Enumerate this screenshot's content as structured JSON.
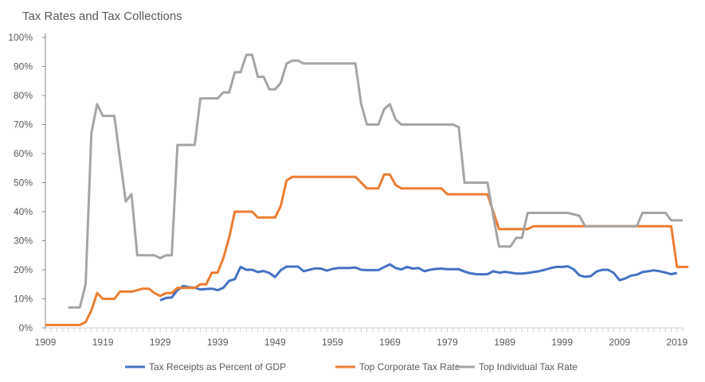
{
  "chart_data": {
    "type": "line",
    "title": "Tax Rates and Tax Collections",
    "xlabel": "",
    "ylabel": "",
    "xlim": [
      1909,
      2020
    ],
    "ylim": [
      0,
      100
    ],
    "x_ticks": [
      "1909",
      "1919",
      "1929",
      "1939",
      "1949",
      "1959",
      "1969",
      "1979",
      "1989",
      "1999",
      "2009",
      "2019"
    ],
    "y_ticks": [
      "0%",
      "10%",
      "20%",
      "30%",
      "40%",
      "50%",
      "60%",
      "70%",
      "80%",
      "90%",
      "100%"
    ],
    "grid": false,
    "legend_position": "bottom",
    "series": [
      {
        "name": "Tax Receipts as Percent of GDP",
        "color": "#4472C4",
        "start_year": 1929,
        "values": [
          9.5,
          10.3,
          10.5,
          13,
          14.4,
          14,
          13.8,
          13.2,
          13.4,
          13.5,
          13,
          13.8,
          16.2,
          16.8,
          21,
          20,
          20,
          19.2,
          19.6,
          18.9,
          17.5,
          19.9,
          21.1,
          21.1,
          21.1,
          19.5,
          20,
          20.5,
          20.4,
          19.7,
          20.3,
          20.6,
          20.6,
          20.6,
          20.8,
          20,
          19.9,
          19.9,
          19.9,
          20.9,
          21.9,
          20.6,
          20.1,
          21,
          20.4,
          20.6,
          19.5,
          20,
          20.3,
          20.4,
          20.2,
          20.2,
          20.2,
          19.4,
          18.8,
          18.5,
          18.4,
          18.5,
          19.5,
          19,
          19.3,
          19,
          18.7,
          18.7,
          18.9,
          19.2,
          19.5,
          20,
          20.6,
          21,
          21,
          21.2,
          20.2,
          18.1,
          17.6,
          17.8,
          19.4,
          20,
          20,
          18.9,
          16.4,
          17,
          18,
          18.3,
          19.2,
          19.5,
          19.8,
          19.5,
          19,
          18.5,
          18.9
        ]
      },
      {
        "name": "Top Corporate Tax Rate",
        "color": "#ED7D31",
        "start_year": 1909,
        "values": [
          1,
          1,
          1,
          1,
          1,
          1,
          1,
          2,
          6,
          12,
          10,
          10,
          10,
          12.5,
          12.5,
          12.5,
          13,
          13.5,
          13.5,
          12,
          11,
          12,
          12,
          13.75,
          13.75,
          13.75,
          13.75,
          15,
          15,
          19,
          19,
          24,
          31,
          40,
          40,
          40,
          40,
          38,
          38,
          38,
          38,
          42,
          50.75,
          52,
          52,
          52,
          52,
          52,
          52,
          52,
          52,
          52,
          52,
          52,
          52,
          50,
          48,
          48,
          48,
          52.8,
          52.8,
          49.2,
          48,
          48,
          48,
          48,
          48,
          48,
          48,
          48,
          46,
          46,
          46,
          46,
          46,
          46,
          46,
          46,
          40,
          34,
          34,
          34,
          34,
          34,
          34,
          35,
          35,
          35,
          35,
          35,
          35,
          35,
          35,
          35,
          35,
          35,
          35,
          35,
          35,
          35,
          35,
          35,
          35,
          35,
          35,
          35,
          35,
          35,
          35,
          35,
          21,
          21,
          21
        ]
      },
      {
        "name": "Top Individual Tax Rate",
        "color": "#A5A5A5",
        "start_year": 1913,
        "values": [
          7,
          7,
          7,
          15,
          67,
          77,
          73,
          73,
          73,
          58,
          43.5,
          46,
          25,
          25,
          25,
          25,
          24,
          25,
          25,
          63,
          63,
          63,
          63,
          79,
          79,
          79,
          79,
          81.1,
          81,
          88,
          88,
          94,
          94,
          86.45,
          86.45,
          82.13,
          82.13,
          84.36,
          91,
          92,
          92,
          91,
          91,
          91,
          91,
          91,
          91,
          91,
          91,
          91,
          91,
          77,
          70,
          70,
          70,
          75.25,
          77,
          71.75,
          70,
          70,
          70,
          70,
          70,
          70,
          70,
          70,
          70,
          70,
          69.13,
          50,
          50,
          50,
          50,
          50,
          38.5,
          28,
          28,
          28,
          31,
          31,
          39.6,
          39.6,
          39.6,
          39.6,
          39.6,
          39.6,
          39.6,
          39.6,
          39.1,
          38.6,
          35,
          35,
          35,
          35,
          35,
          35,
          35,
          35,
          35,
          35,
          39.6,
          39.6,
          39.6,
          39.6,
          39.6,
          37,
          37,
          37
        ]
      }
    ]
  }
}
